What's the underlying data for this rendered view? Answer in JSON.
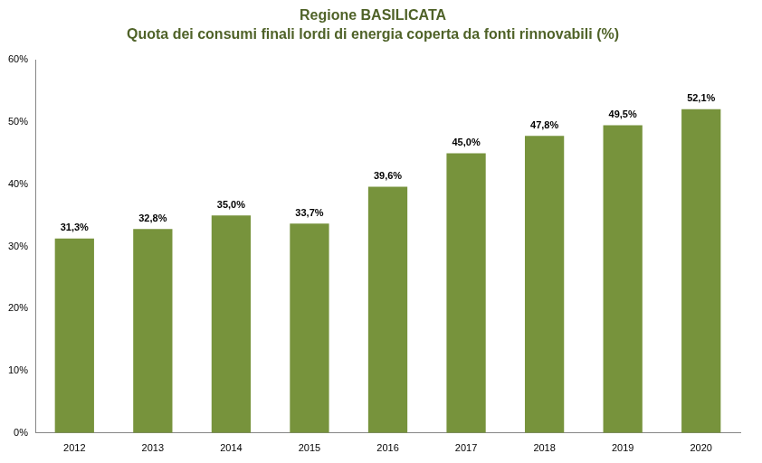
{
  "chart_data": {
    "type": "bar",
    "title": "Regione BASILICATA",
    "subtitle": "Quota dei consumi finali lordi di energia coperta da fonti rinnovabili (%)",
    "categories": [
      "2012",
      "2013",
      "2014",
      "2015",
      "2016",
      "2017",
      "2018",
      "2019",
      "2020"
    ],
    "values": [
      31.3,
      32.8,
      35.0,
      33.7,
      39.6,
      45.0,
      47.8,
      49.5,
      52.1
    ],
    "value_labels": [
      "31,3%",
      "32,8%",
      "35,0%",
      "33,7%",
      "39,6%",
      "45,0%",
      "47,8%",
      "49,5%",
      "52,1%"
    ],
    "color": "#77933c",
    "ylim": [
      0,
      60
    ],
    "yticks": [
      {
        "value": 0,
        "label": "0%"
      },
      {
        "value": 10,
        "label": "10%"
      },
      {
        "value": 20,
        "label": "20%"
      },
      {
        "value": 30,
        "label": "30%"
      },
      {
        "value": 40,
        "label": "40%"
      },
      {
        "value": 50,
        "label": "50%"
      },
      {
        "value": 60,
        "label": "60%"
      }
    ],
    "grid": false,
    "data_labels": true
  }
}
